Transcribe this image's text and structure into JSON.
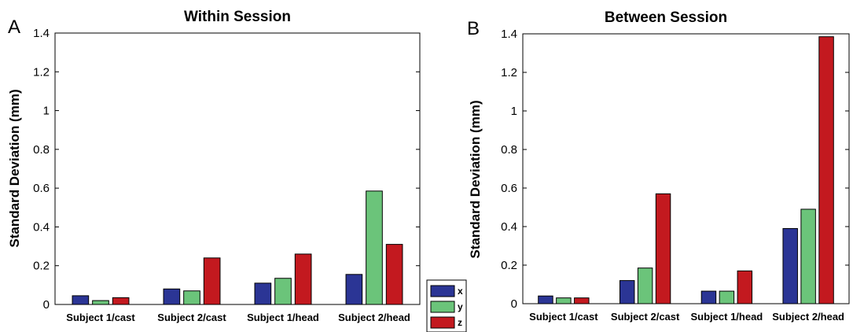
{
  "legend": {
    "entries": [
      {
        "label": "x",
        "color": "#2b3595"
      },
      {
        "label": "y",
        "color": "#6bc47a"
      },
      {
        "label": "z",
        "color": "#c3191f"
      }
    ]
  },
  "chart_data": [
    {
      "type": "bar",
      "panel_label": "A",
      "title": "Within Session",
      "ylabel": "Standard Deviation (mm)",
      "xlabel": "",
      "ylim": [
        0,
        1.4
      ],
      "yticks": [
        0,
        0.2,
        0.4,
        0.6,
        0.8,
        1,
        1.2,
        1.4
      ],
      "ytick_labels": [
        "0",
        "0.2",
        "0.4",
        "0.6",
        "0.8",
        "1",
        "1.2",
        "1.4"
      ],
      "categories": [
        "Subject 1/cast",
        "Subject 2/cast",
        "Subject 1/head",
        "Subject 2/head"
      ],
      "series": [
        {
          "name": "x",
          "color": "#2b3595",
          "values": [
            0.045,
            0.08,
            0.11,
            0.155
          ]
        },
        {
          "name": "y",
          "color": "#6bc47a",
          "values": [
            0.02,
            0.07,
            0.135,
            0.585
          ]
        },
        {
          "name": "z",
          "color": "#c3191f",
          "values": [
            0.035,
            0.24,
            0.26,
            0.31
          ]
        }
      ],
      "grid": false,
      "legend_position": "bottom-right outside"
    },
    {
      "type": "bar",
      "panel_label": "B",
      "title": "Between Session",
      "ylabel": "Standard Deviation (mm)",
      "xlabel": "",
      "ylim": [
        0,
        1.4
      ],
      "yticks": [
        0,
        0.2,
        0.4,
        0.6,
        0.8,
        1,
        1.2,
        1.4
      ],
      "ytick_labels": [
        "0",
        "0.2",
        "0.4",
        "0.6",
        "0.8",
        "1",
        "1.2",
        "1.4"
      ],
      "categories": [
        "Subject 1/cast",
        "Subject 2/cast",
        "Subject 1/head",
        "Subject 2/head"
      ],
      "series": [
        {
          "name": "x",
          "color": "#2b3595",
          "values": [
            0.04,
            0.12,
            0.065,
            0.39
          ]
        },
        {
          "name": "y",
          "color": "#6bc47a",
          "values": [
            0.03,
            0.185,
            0.065,
            0.49
          ]
        },
        {
          "name": "z",
          "color": "#c3191f",
          "values": [
            0.03,
            0.57,
            0.17,
            1.385
          ]
        }
      ],
      "grid": false
    }
  ]
}
